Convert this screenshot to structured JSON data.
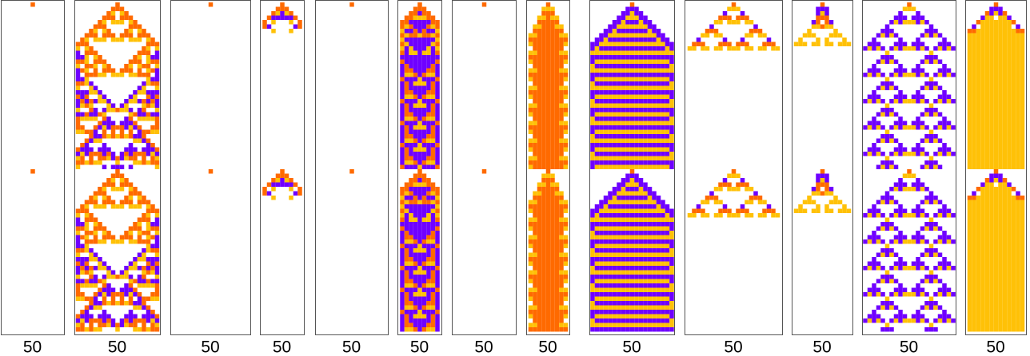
{
  "panels": [
    {
      "label": "50"
    },
    {
      "label": "50"
    },
    {
      "label": "50"
    },
    {
      "label": "50"
    },
    {
      "label": "50"
    },
    {
      "label": "50"
    },
    {
      "label": "50"
    },
    {
      "label": "50"
    },
    {
      "label": "50"
    },
    {
      "label": "50"
    },
    {
      "label": "50"
    },
    {
      "label": "50"
    },
    {
      "label": "50"
    }
  ]
}
